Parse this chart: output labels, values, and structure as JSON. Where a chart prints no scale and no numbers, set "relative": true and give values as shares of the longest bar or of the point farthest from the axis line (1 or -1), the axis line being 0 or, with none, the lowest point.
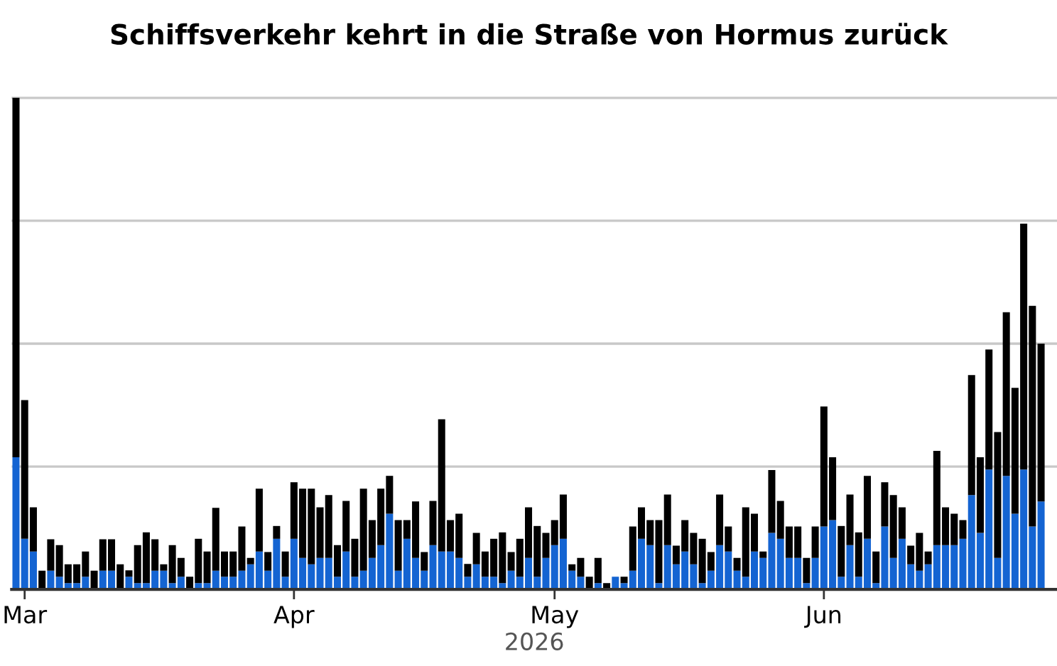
{
  "chart_data": {
    "type": "bar",
    "title": "Schiffsverkehr kehrt in die Straße von Hormus zurück",
    "xlabel": "2026",
    "relative": true,
    "stacked": true,
    "grid": "y",
    "x": [
      "2026-02-28",
      "2026-03-01",
      "2026-03-02",
      "2026-03-03",
      "2026-03-04",
      "2026-03-05",
      "2026-03-06",
      "2026-03-07",
      "2026-03-08",
      "2026-03-09",
      "2026-03-10",
      "2026-03-11",
      "2026-03-12",
      "2026-03-13",
      "2026-03-14",
      "2026-03-15",
      "2026-03-16",
      "2026-03-17",
      "2026-03-18",
      "2026-03-19",
      "2026-03-20",
      "2026-03-21",
      "2026-03-22",
      "2026-03-23",
      "2026-03-24",
      "2026-03-25",
      "2026-03-26",
      "2026-03-27",
      "2026-03-28",
      "2026-03-29",
      "2026-03-30",
      "2026-03-31",
      "2026-04-01",
      "2026-04-02",
      "2026-04-03",
      "2026-04-04",
      "2026-04-05",
      "2026-04-06",
      "2026-04-07",
      "2026-04-08",
      "2026-04-09",
      "2026-04-10",
      "2026-04-11",
      "2026-04-12",
      "2026-04-13",
      "2026-04-14",
      "2026-04-15",
      "2026-04-16",
      "2026-04-17",
      "2026-04-18",
      "2026-04-19",
      "2026-04-20",
      "2026-04-21",
      "2026-04-22",
      "2026-04-23",
      "2026-04-24",
      "2026-04-25",
      "2026-04-26",
      "2026-04-27",
      "2026-04-28",
      "2026-04-29",
      "2026-04-30",
      "2026-05-01",
      "2026-05-02",
      "2026-05-03",
      "2026-05-04",
      "2026-05-05",
      "2026-05-06",
      "2026-05-07",
      "2026-05-08",
      "2026-05-09",
      "2026-05-10",
      "2026-05-11",
      "2026-05-12",
      "2026-05-13",
      "2026-05-14",
      "2026-05-15",
      "2026-05-16",
      "2026-05-17",
      "2026-05-18",
      "2026-05-19",
      "2026-05-20",
      "2026-05-21",
      "2026-05-22",
      "2026-05-23",
      "2026-05-24",
      "2026-05-25",
      "2026-05-26",
      "2026-05-27",
      "2026-05-28",
      "2026-05-29",
      "2026-05-30",
      "2026-05-31",
      "2026-06-01",
      "2026-06-02",
      "2026-06-03",
      "2026-06-04",
      "2026-06-05",
      "2026-06-06",
      "2026-06-07",
      "2026-06-08",
      "2026-06-09",
      "2026-06-10",
      "2026-06-11",
      "2026-06-12",
      "2026-06-13",
      "2026-06-14",
      "2026-06-15",
      "2026-06-16",
      "2026-06-17",
      "2026-06-18",
      "2026-06-19",
      "2026-06-20",
      "2026-06-21",
      "2026-06-22",
      "2026-06-23",
      "2026-06-24",
      "2026-06-25",
      "2026-06-26"
    ],
    "xlim": [
      "2026-02-27T12:00",
      "2026-06-27T20:00"
    ],
    "xticks": [
      {
        "value": "2026-03-01",
        "label": "Mar"
      },
      {
        "value": "2026-04-01",
        "label": "Apr"
      },
      {
        "value": "2026-05-01",
        "label": "May"
      },
      {
        "value": "2026-06-01",
        "label": "Jun"
      }
    ],
    "series": [
      {
        "color": "#1464d2",
        "values": [
          0.269,
          0.103,
          0.077,
          0,
          0.038,
          0.026,
          0.013,
          0.013,
          0.026,
          0,
          0.038,
          0.038,
          0,
          0.026,
          0.013,
          0.013,
          0.038,
          0.038,
          0.013,
          0.026,
          0,
          0.013,
          0.013,
          0.038,
          0.026,
          0.026,
          0.038,
          0.051,
          0.077,
          0.038,
          0.103,
          0.026,
          0.103,
          0.064,
          0.051,
          0.064,
          0.064,
          0.026,
          0.077,
          0.026,
          0.038,
          0.064,
          0.09,
          0.154,
          0.038,
          0.103,
          0.064,
          0.038,
          0.09,
          0.077,
          0.077,
          0.064,
          0.026,
          0.051,
          0.026,
          0.026,
          0.013,
          0.038,
          0.026,
          0.064,
          0.026,
          0.064,
          0.09,
          0.103,
          0.038,
          0.026,
          0,
          0.013,
          0,
          0.026,
          0.013,
          0.038,
          0.103,
          0.09,
          0.013,
          0.09,
          0.051,
          0.077,
          0.051,
          0.013,
          0.038,
          0.09,
          0.077,
          0.038,
          0.026,
          0.077,
          0.064,
          0.115,
          0.103,
          0.064,
          0.064,
          0.013,
          0.064,
          0.128,
          0.141,
          0.026,
          0.09,
          0.026,
          0.103,
          0.013,
          0.128,
          0.064,
          0.103,
          0.051,
          0.038,
          0.051,
          0.09,
          0.09,
          0.09,
          0.103,
          0.192,
          0.115,
          0.244,
          0.064,
          0.231,
          0.154,
          0.244,
          0.128,
          0.179
        ]
      },
      {
        "color": "#000000",
        "values": [
          0.731,
          0.282,
          0.09,
          0.038,
          0.064,
          0.064,
          0.038,
          0.038,
          0.051,
          0.038,
          0.064,
          0.064,
          0.051,
          0.013,
          0.077,
          0.103,
          0.064,
          0.013,
          0.077,
          0.038,
          0.026,
          0.09,
          0.064,
          0.128,
          0.051,
          0.051,
          0.09,
          0.013,
          0.128,
          0.038,
          0.026,
          0.051,
          0.115,
          0.141,
          0.154,
          0.103,
          0.128,
          0.064,
          0.103,
          0.077,
          0.167,
          0.077,
          0.115,
          0.077,
          0.103,
          0.038,
          0.115,
          0.038,
          0.09,
          0.269,
          0.064,
          0.09,
          0.026,
          0.064,
          0.051,
          0.077,
          0.103,
          0.038,
          0.077,
          0.103,
          0.103,
          0.051,
          0.051,
          0.09,
          0.013,
          0.038,
          0.026,
          0.051,
          0.013,
          0,
          0.013,
          0.09,
          0.064,
          0.051,
          0.128,
          0.103,
          0.038,
          0.064,
          0.064,
          0.09,
          0.038,
          0.103,
          0.051,
          0.026,
          0.141,
          0.077,
          0.013,
          0.128,
          0.077,
          0.064,
          0.064,
          0.051,
          0.064,
          0.244,
          0.128,
          0.103,
          0.103,
          0.09,
          0.128,
          0.064,
          0.09,
          0.128,
          0.064,
          0.038,
          0.077,
          0.026,
          0.192,
          0.077,
          0.064,
          0.038,
          0.244,
          0.154,
          0.244,
          0.256,
          0.333,
          0.256,
          0.5,
          0.449,
          0.321
        ]
      }
    ]
  }
}
